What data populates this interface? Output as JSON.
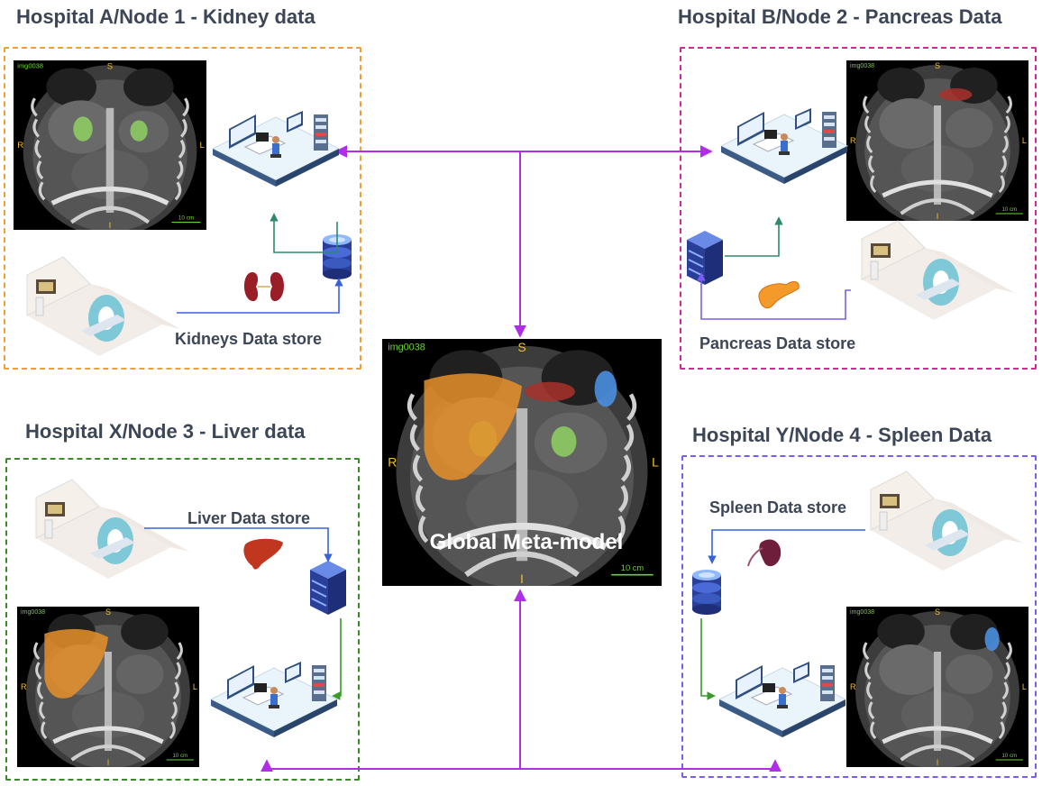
{
  "nodes": {
    "a": {
      "title": "Hospital A/Node 1 - Kidney data",
      "store_label": "Kidneys Data store",
      "color": "#f0a030"
    },
    "b": {
      "title": "Hospital B/Node 2 - Pancreas Data",
      "store_label": "Pancreas Data store",
      "color": "#d1289a"
    },
    "x": {
      "title": "Hospital X/Node 3 - Liver data",
      "store_label": "Liver Data store",
      "color": "#3a8a2a"
    },
    "y": {
      "title": "Hospital Y/Node 4 - Spleen Data",
      "store_label": "Spleen Data store",
      "color": "#7a5cf0"
    }
  },
  "global": {
    "label": "Global Meta-model"
  },
  "ct": {
    "image_id": "img0038",
    "top": "S",
    "bottom": "I",
    "left": "R",
    "right": "L",
    "scale": "10 cm"
  },
  "colors": {
    "arrow": "#b02ee8",
    "kidney_seg": "#8fd060",
    "pancreas_seg": "#a8322a",
    "liver_seg": "#e8902a",
    "spleen_seg": "#4a8ee0",
    "organ_kidney": "#9a1e28",
    "organ_pancreas": "#f39a2a",
    "organ_liver": "#c0361e",
    "organ_spleen": "#6e1e3a"
  }
}
